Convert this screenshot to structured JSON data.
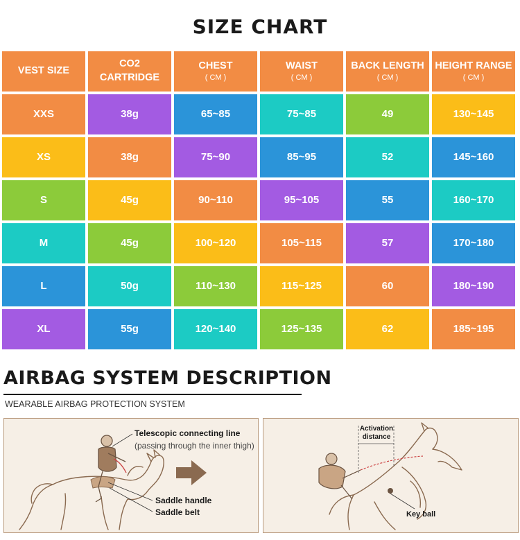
{
  "title": "SIZE CHART",
  "headers": [
    {
      "label": "VEST SIZE",
      "unit": ""
    },
    {
      "label": "CO2\nCARTRIDGE",
      "unit": ""
    },
    {
      "label": "CHEST",
      "unit": "( CM )"
    },
    {
      "label": "WAIST",
      "unit": "( CM )"
    },
    {
      "label": "BACK LENGTH",
      "unit": "( CM )"
    },
    {
      "label": "HEIGHT RANGE",
      "unit": "( CM )"
    }
  ],
  "rows": [
    [
      "XXS",
      "38g",
      "65~85",
      "75~85",
      "49",
      "130~145"
    ],
    [
      "XS",
      "38g",
      "75~90",
      "85~95",
      "52",
      "145~160"
    ],
    [
      "S",
      "45g",
      "90~110",
      "95~105",
      "55",
      "160~170"
    ],
    [
      "M",
      "45g",
      "100~120",
      "105~115",
      "57",
      "170~180"
    ],
    [
      "L",
      "50g",
      "110~130",
      "115~125",
      "60",
      "180~190"
    ],
    [
      "XL",
      "55g",
      "120~140",
      "125~135",
      "62",
      "185~195"
    ]
  ],
  "colors": {
    "orange": "#f28c44",
    "purple": "#a35be2",
    "blue": "#2b94d9",
    "teal": "#1ccbc4",
    "green": "#8ccb3a",
    "yellow": "#fbbd18"
  },
  "airbag": {
    "title": "AIRBAG SYSTEM DESCRIPTION",
    "subtitle": "WEARABLE AIRBAG PROTECTION SYSTEM",
    "left_panel": {
      "line_label": "Telescopic connecting line",
      "line_note": "(passing through the inner thigh)",
      "handle_label": "Saddle handle",
      "belt_label": "Saddle belt"
    },
    "right_panel": {
      "activation_label_1": "Activation",
      "activation_label_2": "distance",
      "key_ball_label": "Key ball"
    }
  }
}
